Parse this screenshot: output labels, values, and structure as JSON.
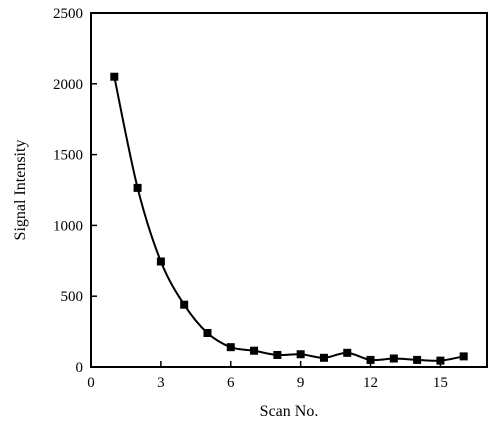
{
  "chart_data": {
    "type": "line",
    "title": "",
    "xlabel": "Scan No.",
    "ylabel": "Signal Intensity",
    "xlim": [
      0,
      17
    ],
    "ylim": [
      0,
      2500
    ],
    "xticks": [
      0,
      3,
      6,
      9,
      12,
      15
    ],
    "yticks": [
      0,
      500,
      1000,
      1500,
      2000,
      2500
    ],
    "grid": false,
    "legend": "none",
    "marker": "square",
    "line_color": "#000000",
    "series": [
      {
        "x": [
          1,
          2,
          3,
          4,
          5,
          6,
          7,
          8,
          9,
          10,
          11,
          12,
          13,
          14,
          15,
          16
        ],
        "values": [
          2050,
          1265,
          745,
          440,
          240,
          140,
          115,
          85,
          90,
          65,
          100,
          50,
          60,
          50,
          45,
          75
        ]
      }
    ]
  }
}
